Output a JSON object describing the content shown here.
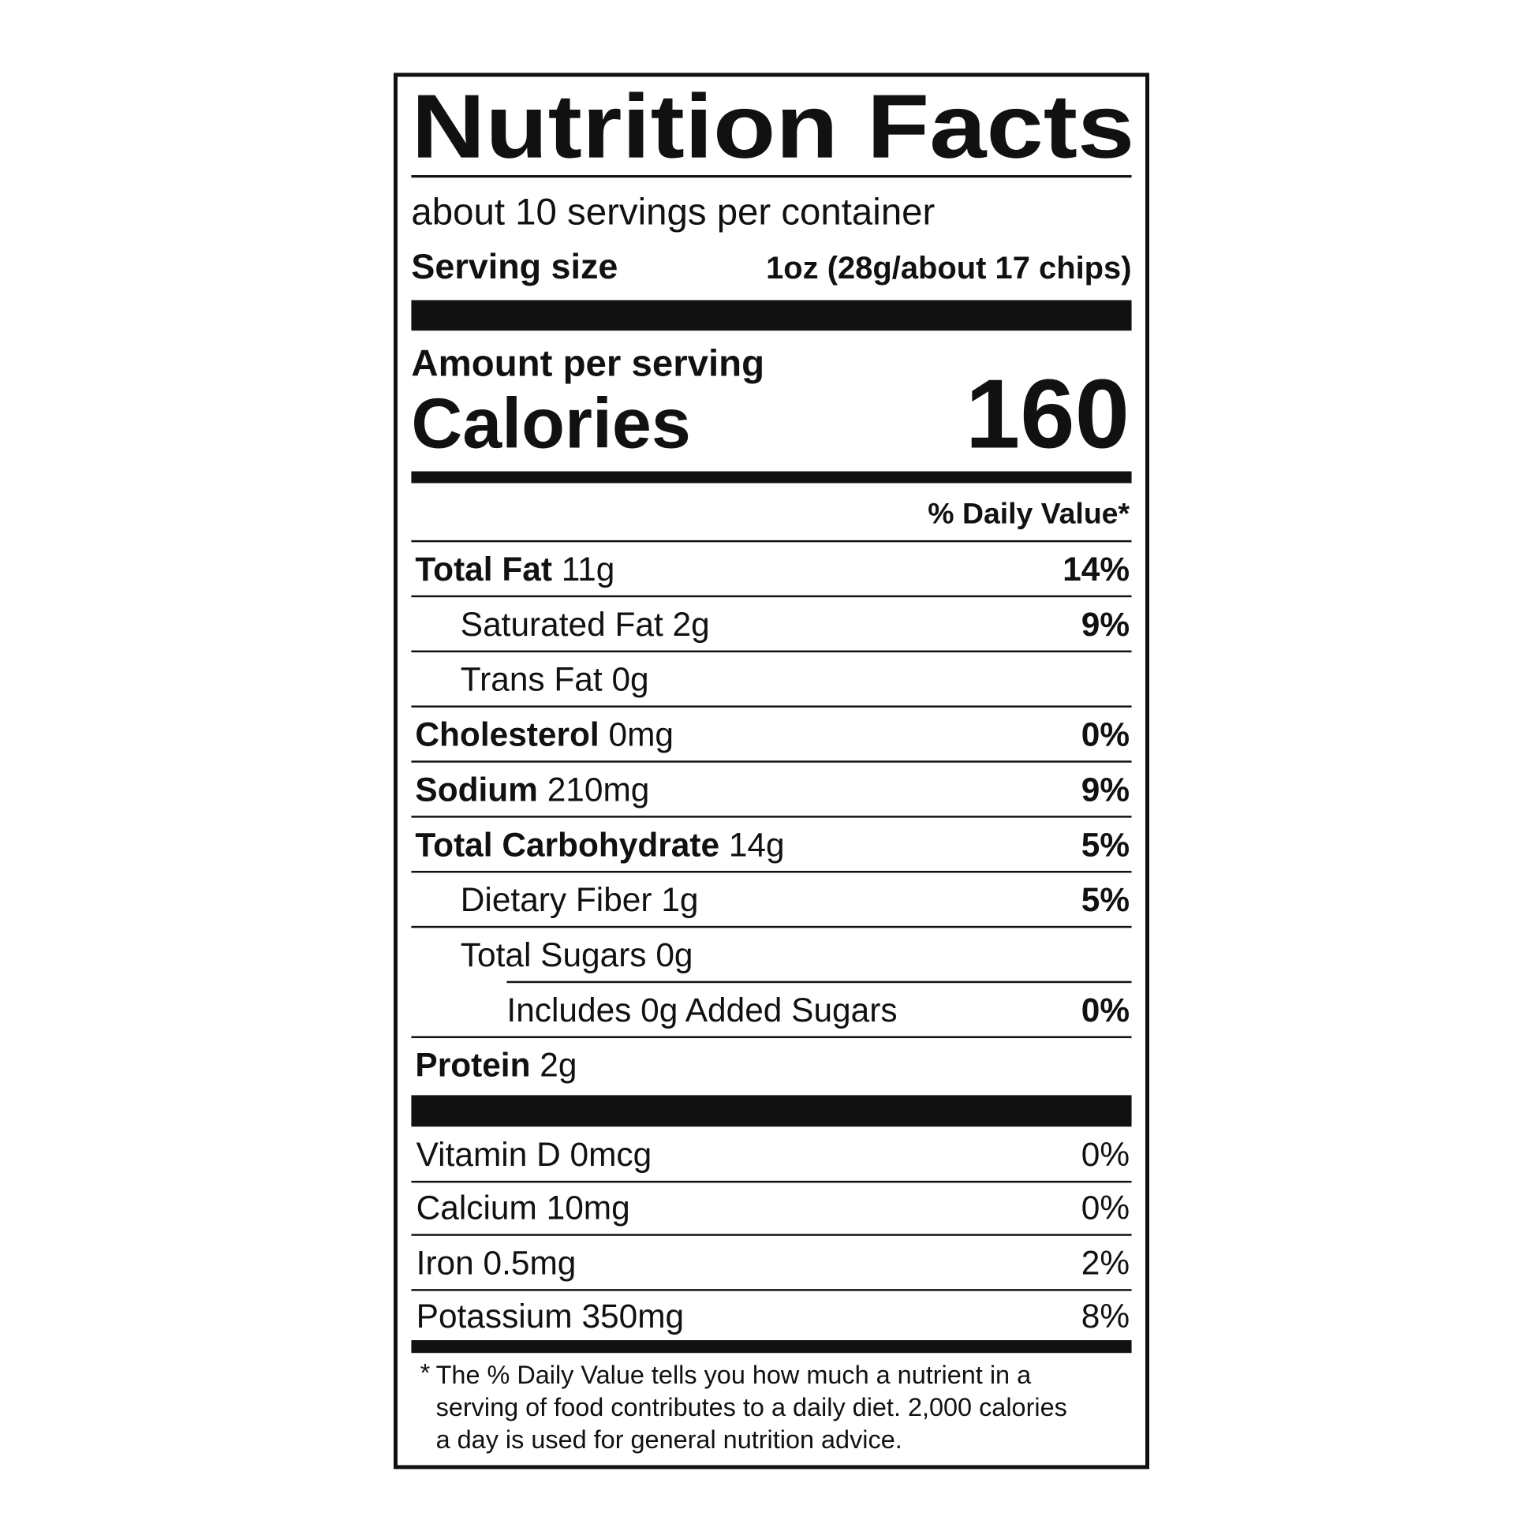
{
  "title": "Nutrition Facts",
  "servings": "about 10 servings per container",
  "serving_size": {
    "label": "Serving size",
    "value": "1oz (28g/about 17 chips)"
  },
  "amount_per_serving": "Amount per serving",
  "calories": {
    "label": "Calories",
    "value": "160"
  },
  "daily_value_header": "% Daily Value*",
  "nutrients": [
    {
      "name": "Total Fat",
      "amount": "11g",
      "dv": "14%",
      "level": 0
    },
    {
      "name": "Saturated Fat",
      "amount": "2g",
      "dv": "9%",
      "level": 1
    },
    {
      "name": "Trans Fat",
      "amount": "0g",
      "level": 1
    },
    {
      "name": "Cholesterol",
      "amount": "0mg",
      "dv": "0%",
      "level": 0
    },
    {
      "name": "Sodium",
      "amount": "210mg",
      "dv": "9%",
      "level": 0
    },
    {
      "name": "Total Carbohydrate",
      "amount": "14g",
      "dv": "5%",
      "level": 0
    },
    {
      "name": "Dietary Fiber",
      "amount": "1g",
      "dv": "5%",
      "level": 1
    },
    {
      "name": "Total Sugars",
      "amount": "0g",
      "level": 1
    },
    {
      "name": "Includes 0g Added Sugars",
      "dv": "0%",
      "level": 2
    },
    {
      "name": "Protein",
      "amount": "2g",
      "level": 0
    }
  ],
  "vitamins": [
    {
      "name": "Vitamin D",
      "amount": "0mcg",
      "dv": "0%"
    },
    {
      "name": "Calcium",
      "amount": "10mg",
      "dv": "0%"
    },
    {
      "name": "Iron",
      "amount": "0.5mg",
      "dv": "2%"
    },
    {
      "name": "Potassium",
      "amount": "350mg",
      "dv": "8%"
    }
  ],
  "footnote": {
    "marker": "*",
    "lines": [
      "The % Daily Value tells you how much a nutrient in a",
      "serving of food contributes to a daily diet. 2,000 calories",
      "a day is used for general nutrition advice."
    ]
  }
}
